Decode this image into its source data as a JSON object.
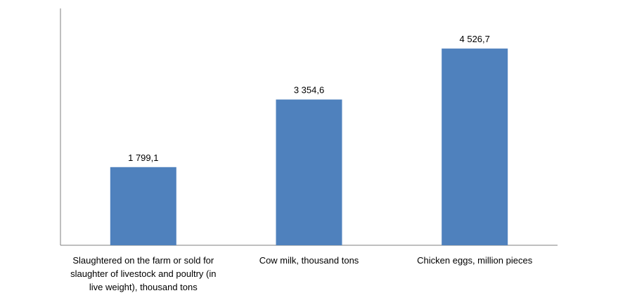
{
  "chart_data": {
    "type": "bar",
    "title": "",
    "xlabel": "",
    "ylabel": "",
    "categories": [
      "Slaughtered on the farm or sold for slaughter of livestock and poultry (in live weight), thousand tons",
      "Cow milk, thousand tons",
      "Chicken eggs, million pieces"
    ],
    "category_lines": [
      [
        "Slaughtered on the farm or sold for",
        "slaughter of livestock and poultry (in",
        "live weight), thousand tons"
      ],
      [
        "Cow milk, thousand tons"
      ],
      [
        "Chicken eggs, million pieces"
      ]
    ],
    "values": [
      1799.1,
      3354.6,
      4526.7
    ],
    "data_labels": [
      "1 799,1",
      "3 354,6",
      "4 526,7"
    ],
    "ylim": [
      0,
      5000
    ],
    "grid": false,
    "legend": "none",
    "colors": {
      "bar": "#4F81BD",
      "axis": "#7F7F7F"
    }
  }
}
